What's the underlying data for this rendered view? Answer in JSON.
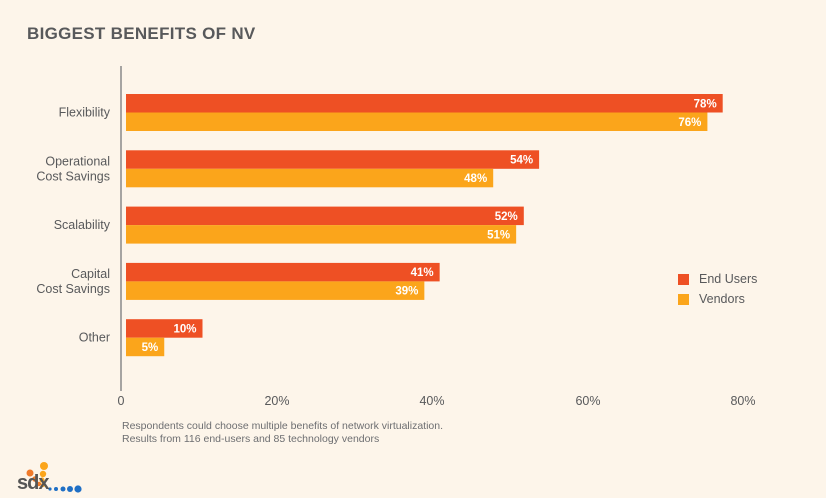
{
  "chart_data": {
    "type": "bar",
    "orientation": "horizontal",
    "title": "BIGGEST BENEFITS OF NV",
    "categories": [
      "Flexibility",
      "Operational\nCost Savings",
      "Scalability",
      "Capital\nCost Savings",
      "Other"
    ],
    "series": [
      {
        "name": "End Users",
        "color": "#ee5024",
        "values": [
          78,
          54,
          52,
          41,
          10
        ],
        "labels": [
          "78%",
          "54%",
          "52%",
          "41%",
          "10%"
        ]
      },
      {
        "name": "Vendors",
        "color": "#fba51b",
        "values": [
          76,
          48,
          51,
          39,
          5
        ],
        "labels": [
          "76%",
          "48%",
          "51%",
          "39%",
          "5%"
        ]
      }
    ],
    "xlim": [
      0,
      80
    ],
    "xticks": [
      0,
      20,
      40,
      60,
      80
    ],
    "xtick_labels": [
      "0",
      "20%",
      "40%",
      "60%",
      "80%"
    ],
    "xlabel": "",
    "ylabel": "",
    "grid": false,
    "legend_position": "right"
  },
  "footnote": {
    "line1": "Respondents could choose multiple benefits of network virtualization.",
    "line2": "Results from 116 end-users and 85 technology vendors"
  },
  "logo": {
    "text": "sdx",
    "icon": "sdx-dots-logo-icon"
  },
  "colors": {
    "background": "#fdf5ea",
    "text": "#58595b",
    "axis": "#8a8a8a"
  }
}
